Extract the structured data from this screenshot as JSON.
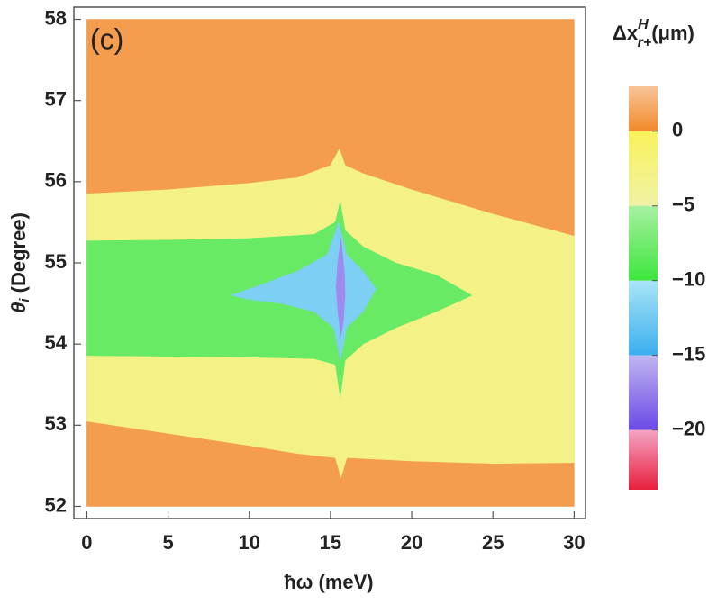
{
  "chart_data": {
    "type": "contour",
    "panel_label": "(c)",
    "xlabel": "ħω (meV)",
    "ylabel": {
      "symbol": "θ",
      "sub": "i",
      "text": " (Degree)"
    },
    "xlim": [
      -0.8,
      30.7
    ],
    "ylim": [
      51.85,
      58.15
    ],
    "xticks": [
      0,
      5,
      10,
      15,
      20,
      25,
      30
    ],
    "yticks": [
      52,
      53,
      54,
      55,
      56,
      57,
      58
    ],
    "regions": [
      {
        "z": 1,
        "x": [
          0,
          30,
          30,
          0
        ],
        "y": [
          52,
          52,
          58,
          58
        ]
      },
      {
        "z": -3,
        "x": [
          0,
          5,
          10,
          13,
          15,
          15.55,
          15.9,
          17,
          20,
          25,
          30,
          30,
          25,
          20,
          16,
          15.65,
          15.3,
          13,
          10,
          5,
          0
        ],
        "y": [
          55.85,
          55.9,
          55.98,
          56.05,
          56.2,
          56.4,
          56.2,
          56.1,
          55.9,
          55.6,
          55.33,
          52.54,
          52.53,
          52.56,
          52.6,
          52.36,
          52.6,
          52.65,
          52.75,
          52.9,
          53.05
        ]
      },
      {
        "z": -8,
        "x": [
          0,
          5,
          10,
          14,
          15.3,
          15.6,
          15.9,
          17,
          19,
          21.5,
          23.7,
          21.5,
          19,
          17,
          15.9,
          15.6,
          15.3,
          14,
          10,
          5,
          0
        ],
        "y": [
          55.27,
          55.28,
          55.3,
          55.35,
          55.5,
          55.75,
          55.4,
          55.2,
          55.0,
          54.85,
          54.6,
          54.4,
          54.2,
          54.0,
          53.8,
          53.35,
          53.75,
          53.82,
          53.84,
          53.85,
          53.86
        ]
      },
      {
        "z": -12,
        "x": [
          8.9,
          11,
          13,
          14.8,
          15.5,
          16,
          17,
          17.8,
          17,
          16,
          15.6,
          15.2,
          14,
          12,
          10
        ],
        "y": [
          54.6,
          54.75,
          54.9,
          55.1,
          55.5,
          55.1,
          54.9,
          54.68,
          54.4,
          54.2,
          53.8,
          54.2,
          54.4,
          54.5,
          54.55
        ]
      },
      {
        "z": -17,
        "x": [
          15.65,
          15.85,
          15.9,
          15.8,
          15.65,
          15.45,
          15.35,
          15.45
        ],
        "y": [
          55.3,
          54.9,
          54.6,
          54.3,
          54.1,
          54.4,
          54.7,
          55.0
        ]
      }
    ],
    "colorbar": {
      "label": {
        "base": "Δx",
        "sup": "H",
        "sub": "r+",
        "unit": "(μm)"
      },
      "lim": [
        -24,
        3
      ],
      "ticks": [
        0,
        {
          "value": -5,
          "label": "−5"
        },
        {
          "value": -10,
          "label": "−10"
        },
        {
          "value": -15,
          "label": "−15"
        },
        {
          "value": -20,
          "label": "−20"
        }
      ],
      "bands": [
        {
          "range": [
            0,
            3
          ],
          "colors": [
            "#f28a2a",
            "#f8c497"
          ]
        },
        {
          "range": [
            -5,
            0
          ],
          "colors": [
            "#f1f2a4",
            "#f9f25c"
          ]
        },
        {
          "range": [
            -10,
            -5
          ],
          "colors": [
            "#3ee63c",
            "#a6f19f"
          ]
        },
        {
          "range": [
            -15,
            -10
          ],
          "colors": [
            "#3aaeee",
            "#a9e6f7"
          ]
        },
        {
          "range": [
            -20,
            -15
          ],
          "colors": [
            "#6a4ae8",
            "#c2b6f0"
          ]
        },
        {
          "range": [
            -24,
            -20
          ],
          "colors": [
            "#e8203c",
            "#f4a3c4"
          ]
        }
      ]
    }
  }
}
